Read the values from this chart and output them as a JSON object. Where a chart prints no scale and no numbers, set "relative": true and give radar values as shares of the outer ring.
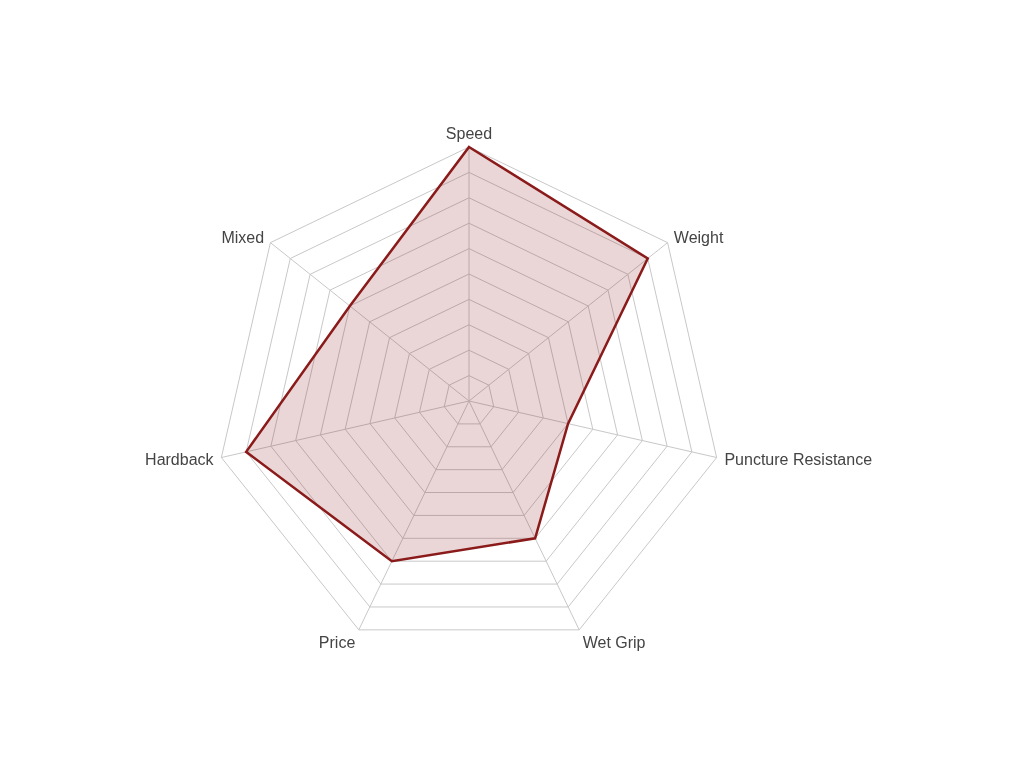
{
  "chart_data": {
    "type": "radar",
    "relative": true,
    "grid": true,
    "categories": [
      "Speed",
      "Weight",
      "Puncture Resistance",
      "Wet Grip",
      "Price",
      "Hardback",
      "Mixed"
    ],
    "series": [
      {
        "color": "#8b1a1a",
        "values": [
          1,
          0.9,
          0.4,
          0.6,
          0.7,
          0.9,
          0.6
        ]
      }
    ]
  }
}
